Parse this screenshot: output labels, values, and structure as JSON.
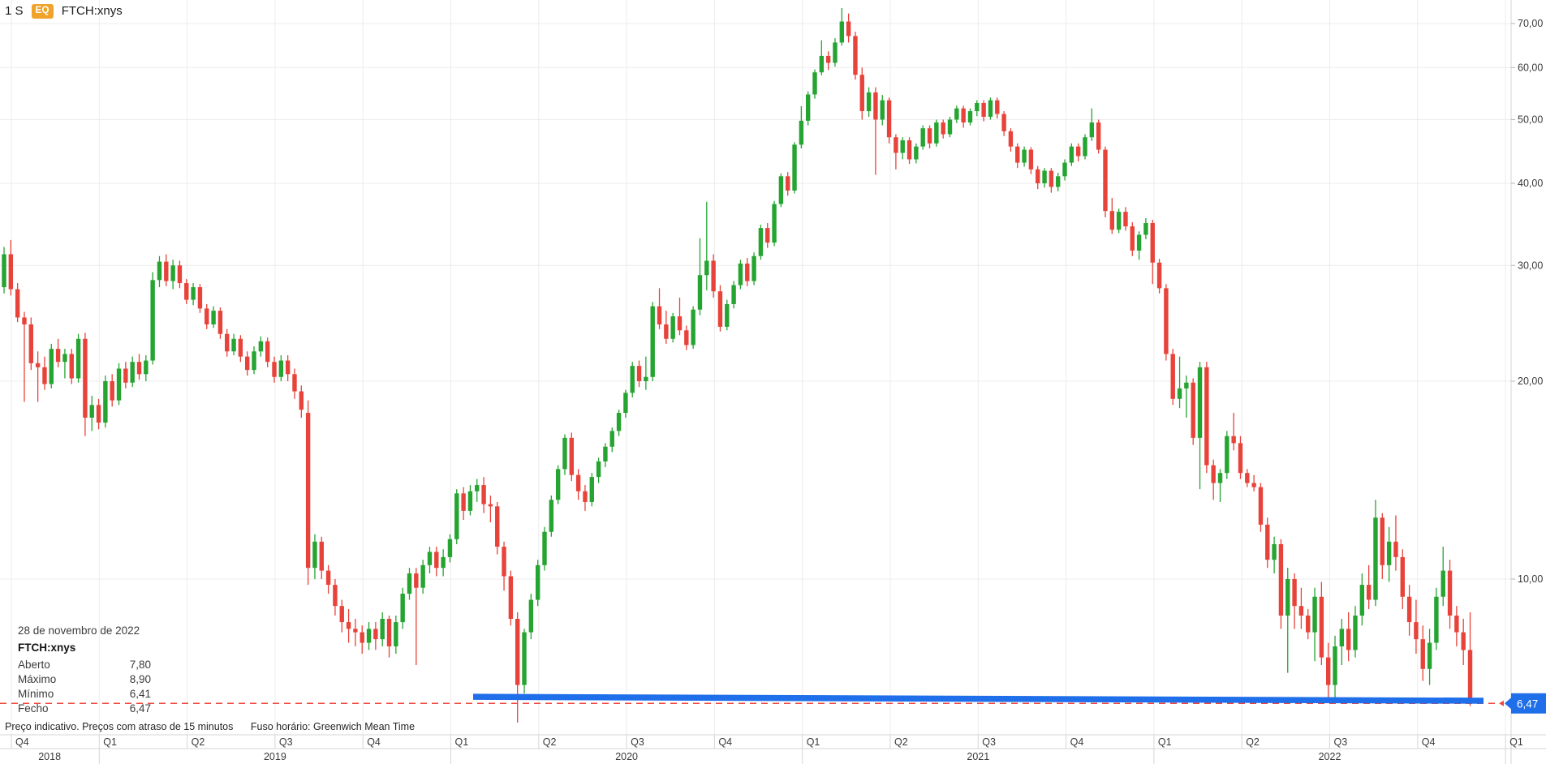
{
  "header": {
    "timeframe": "1 S",
    "instrument_badge": "EQ",
    "symbol": "FTCH:xnys"
  },
  "tooltip": {
    "date": "28 de novembro de 2022",
    "symbol": "FTCH:xnys",
    "rows": [
      {
        "label": "Aberto",
        "value": "7,80"
      },
      {
        "label": "Máximo",
        "value": "8,90"
      },
      {
        "label": "Mínimo",
        "value": "6,41"
      },
      {
        "label": "Fecho",
        "value": "6,47"
      }
    ]
  },
  "status": {
    "delay_notice": "Preço indicativo. Preços com atraso de 15 minutos",
    "timezone": "Fuso horário: Greenwich Mean Time"
  },
  "chart_data": {
    "type": "candlestick",
    "symbol": "FTCH:xnys",
    "interval": "weekly",
    "y_scale": "log",
    "grid": true,
    "y_axis": {
      "side": "right",
      "ticks": [
        70,
        60,
        50,
        40,
        30,
        20,
        10
      ],
      "tick_labels": [
        "70,00",
        "60,00",
        "50,00",
        "40,00",
        "30,00",
        "20,00",
        "10,00"
      ],
      "range_approx": [
        5.9,
        76
      ]
    },
    "x_axis": {
      "quarter_labels": [
        "Q4",
        "Q1",
        "Q2",
        "Q3",
        "Q4",
        "Q1",
        "Q2",
        "Q3",
        "Q4",
        "Q1",
        "Q2",
        "Q3",
        "Q4",
        "Q1",
        "Q2",
        "Q3",
        "Q4",
        "Q1"
      ],
      "year_labels": [
        "2018",
        "2019",
        "2020",
        "2021",
        "2022"
      ]
    },
    "last_price": {
      "value": 6.47,
      "label": "6,47"
    },
    "overlays": {
      "trendline": {
        "type": "horizontal-line",
        "price_start": 6.62,
        "price_end": 6.53,
        "color": "#1f6fea"
      },
      "last_price_line": {
        "price": 6.47,
        "style": "dashed",
        "color": "#f0453c"
      }
    },
    "colors": {
      "up": "#25a431",
      "down": "#e8433a",
      "grid": "#ececec",
      "axis_border": "#d6d6d6",
      "axis_text": "#3a3a3a",
      "price_badge_bg": "#1f6fea",
      "price_badge_text": "#ffffff",
      "eq_badge_bg": "#f0a32a"
    },
    "candles": [
      [
        27.8,
        32.0,
        27.2,
        31.2
      ],
      [
        31.2,
        32.8,
        27.0,
        27.6
      ],
      [
        27.6,
        28.2,
        24.6,
        25.0
      ],
      [
        25.0,
        25.5,
        18.6,
        24.4
      ],
      [
        24.4,
        25.0,
        20.8,
        21.3
      ],
      [
        21.3,
        22.2,
        18.6,
        21.0
      ],
      [
        21.0,
        21.8,
        19.4,
        19.8
      ],
      [
        19.8,
        22.8,
        19.5,
        22.4
      ],
      [
        22.4,
        23.2,
        21.0,
        21.4
      ],
      [
        21.4,
        22.4,
        20.2,
        22.0
      ],
      [
        22.0,
        22.4,
        19.8,
        20.2
      ],
      [
        20.2,
        23.6,
        19.9,
        23.2
      ],
      [
        23.2,
        23.7,
        16.5,
        17.6
      ],
      [
        17.6,
        19.0,
        16.8,
        18.4
      ],
      [
        18.4,
        18.8,
        16.9,
        17.3
      ],
      [
        17.3,
        20.4,
        17.0,
        20.0
      ],
      [
        20.0,
        20.5,
        18.3,
        18.7
      ],
      [
        18.7,
        21.3,
        18.4,
        20.9
      ],
      [
        20.9,
        21.4,
        19.5,
        19.9
      ],
      [
        19.9,
        21.8,
        19.6,
        21.4
      ],
      [
        21.4,
        22.0,
        20.1,
        20.5
      ],
      [
        20.5,
        21.9,
        20.0,
        21.5
      ],
      [
        21.5,
        29.3,
        21.2,
        28.5
      ],
      [
        28.5,
        31.0,
        27.8,
        30.4
      ],
      [
        30.4,
        31.2,
        27.9,
        28.4
      ],
      [
        28.4,
        30.6,
        27.6,
        30.0
      ],
      [
        30.0,
        30.5,
        27.7,
        28.2
      ],
      [
        28.2,
        28.6,
        26.2,
        26.6
      ],
      [
        26.6,
        28.2,
        26.1,
        27.8
      ],
      [
        27.8,
        28.1,
        25.4,
        25.8
      ],
      [
        25.8,
        26.2,
        24.0,
        24.4
      ],
      [
        24.4,
        26.0,
        24.1,
        25.6
      ],
      [
        25.6,
        25.9,
        23.2,
        23.6
      ],
      [
        23.6,
        24.0,
        21.8,
        22.2
      ],
      [
        22.2,
        23.6,
        21.9,
        23.2
      ],
      [
        23.2,
        23.5,
        21.4,
        21.8
      ],
      [
        21.8,
        22.2,
        20.4,
        20.8
      ],
      [
        20.8,
        22.6,
        20.5,
        22.2
      ],
      [
        22.2,
        23.4,
        21.8,
        23.0
      ],
      [
        23.0,
        23.3,
        21.0,
        21.4
      ],
      [
        21.4,
        21.8,
        19.9,
        20.3
      ],
      [
        20.3,
        21.9,
        20.0,
        21.5
      ],
      [
        21.5,
        21.9,
        20.0,
        20.5
      ],
      [
        20.5,
        20.9,
        18.8,
        19.3
      ],
      [
        19.3,
        19.7,
        17.6,
        18.1
      ],
      [
        17.9,
        18.7,
        9.8,
        10.4
      ],
      [
        10.4,
        11.7,
        10.0,
        11.4
      ],
      [
        11.4,
        11.6,
        10.0,
        10.3
      ],
      [
        10.3,
        10.5,
        9.5,
        9.8
      ],
      [
        9.8,
        10.0,
        8.8,
        9.1
      ],
      [
        9.1,
        9.3,
        8.3,
        8.6
      ],
      [
        8.6,
        9.0,
        8.0,
        8.4
      ],
      [
        8.4,
        8.7,
        7.9,
        8.3
      ],
      [
        8.3,
        8.5,
        7.7,
        8.0
      ],
      [
        8.0,
        8.6,
        7.8,
        8.4
      ],
      [
        8.4,
        8.6,
        7.8,
        8.1
      ],
      [
        8.1,
        8.9,
        7.9,
        8.7
      ],
      [
        8.7,
        8.8,
        7.6,
        7.9
      ],
      [
        7.9,
        8.8,
        7.7,
        8.6
      ],
      [
        8.6,
        9.7,
        8.4,
        9.5
      ],
      [
        9.5,
        10.4,
        9.3,
        10.2
      ],
      [
        10.2,
        10.4,
        7.4,
        9.7
      ],
      [
        9.7,
        10.7,
        9.5,
        10.5
      ],
      [
        10.5,
        11.2,
        10.2,
        11.0
      ],
      [
        11.0,
        11.2,
        10.1,
        10.4
      ],
      [
        10.4,
        11.1,
        10.1,
        10.8
      ],
      [
        10.8,
        11.7,
        10.6,
        11.5
      ],
      [
        11.5,
        13.7,
        11.3,
        13.5
      ],
      [
        13.5,
        13.8,
        12.3,
        12.7
      ],
      [
        12.7,
        13.9,
        12.5,
        13.6
      ],
      [
        13.6,
        14.2,
        13.1,
        13.9
      ],
      [
        13.9,
        14.3,
        12.6,
        13.0
      ],
      [
        13.0,
        13.4,
        12.2,
        12.9
      ],
      [
        12.9,
        13.1,
        10.9,
        11.2
      ],
      [
        11.2,
        11.4,
        9.6,
        10.1
      ],
      [
        10.1,
        10.3,
        8.5,
        8.7
      ],
      [
        8.7,
        8.9,
        6.05,
        6.9
      ],
      [
        6.9,
        8.4,
        6.7,
        8.3
      ],
      [
        8.3,
        9.5,
        8.1,
        9.3
      ],
      [
        9.3,
        10.7,
        9.1,
        10.5
      ],
      [
        10.5,
        12.0,
        10.3,
        11.8
      ],
      [
        11.8,
        13.4,
        11.6,
        13.2
      ],
      [
        13.2,
        14.9,
        13.0,
        14.7
      ],
      [
        14.7,
        16.6,
        14.4,
        16.4
      ],
      [
        16.4,
        16.7,
        14.1,
        14.4
      ],
      [
        14.4,
        14.7,
        13.2,
        13.6
      ],
      [
        13.6,
        13.9,
        12.7,
        13.1
      ],
      [
        13.1,
        14.5,
        12.9,
        14.3
      ],
      [
        14.3,
        15.3,
        14.0,
        15.1
      ],
      [
        15.1,
        16.1,
        14.8,
        15.9
      ],
      [
        15.9,
        17.0,
        15.6,
        16.8
      ],
      [
        16.8,
        18.1,
        16.5,
        17.9
      ],
      [
        17.9,
        19.4,
        17.6,
        19.2
      ],
      [
        19.2,
        21.4,
        18.9,
        21.1
      ],
      [
        21.1,
        21.5,
        19.6,
        20.0
      ],
      [
        20.0,
        21.8,
        19.4,
        20.3
      ],
      [
        20.3,
        26.4,
        20.0,
        26.0
      ],
      [
        26.0,
        27.7,
        24.0,
        24.4
      ],
      [
        24.4,
        25.6,
        22.8,
        23.2
      ],
      [
        23.2,
        25.4,
        22.9,
        25.1
      ],
      [
        25.1,
        26.8,
        23.5,
        23.9
      ],
      [
        23.9,
        24.3,
        22.3,
        22.7
      ],
      [
        22.7,
        26.0,
        22.4,
        25.7
      ],
      [
        25.7,
        33.0,
        25.2,
        29.0
      ],
      [
        29.0,
        37.5,
        27.5,
        30.5
      ],
      [
        30.5,
        31.2,
        26.8,
        27.4
      ],
      [
        27.4,
        28.0,
        23.8,
        24.2
      ],
      [
        24.2,
        26.6,
        23.9,
        26.2
      ],
      [
        26.2,
        28.4,
        25.8,
        28.0
      ],
      [
        28.0,
        30.6,
        27.6,
        30.2
      ],
      [
        30.2,
        30.8,
        27.9,
        28.4
      ],
      [
        28.4,
        31.4,
        28.0,
        31.0
      ],
      [
        31.0,
        34.6,
        30.6,
        34.2
      ],
      [
        34.2,
        34.8,
        31.9,
        32.5
      ],
      [
        32.5,
        37.6,
        32.1,
        37.2
      ],
      [
        37.2,
        41.4,
        36.8,
        41.0
      ],
      [
        41.0,
        41.6,
        38.3,
        39.0
      ],
      [
        39.0,
        46.2,
        38.6,
        45.8
      ],
      [
        45.8,
        52.4,
        45.2,
        49.8
      ],
      [
        49.8,
        55.2,
        49.0,
        54.6
      ],
      [
        54.6,
        59.6,
        53.8,
        59.0
      ],
      [
        59.0,
        66.0,
        58.4,
        62.5
      ],
      [
        62.5,
        63.5,
        59.5,
        61.0
      ],
      [
        61.0,
        66.5,
        60.2,
        65.5
      ],
      [
        65.5,
        73.9,
        64.8,
        70.5
      ],
      [
        70.5,
        72.5,
        65.5,
        67.0
      ],
      [
        67.0,
        68.0,
        57.5,
        58.5
      ],
      [
        58.5,
        60.0,
        50.0,
        51.5
      ],
      [
        51.5,
        56.0,
        50.5,
        55.0
      ],
      [
        55.0,
        56.0,
        41.2,
        50.0
      ],
      [
        50.0,
        54.5,
        49.0,
        53.5
      ],
      [
        53.5,
        54.0,
        46.0,
        47.0
      ],
      [
        47.0,
        47.5,
        42.0,
        44.5
      ],
      [
        44.5,
        47.0,
        43.5,
        46.5
      ],
      [
        46.5,
        47.0,
        42.8,
        43.5
      ],
      [
        43.5,
        46.0,
        42.9,
        45.5
      ],
      [
        45.5,
        49.0,
        45.0,
        48.5
      ],
      [
        48.5,
        49.0,
        45.2,
        46.0
      ],
      [
        46.0,
        50.0,
        45.5,
        49.5
      ],
      [
        49.5,
        50.0,
        46.8,
        47.5
      ],
      [
        47.5,
        50.5,
        47.0,
        50.0
      ],
      [
        50.0,
        52.5,
        49.4,
        52.0
      ],
      [
        52.0,
        52.5,
        48.6,
        49.5
      ],
      [
        49.5,
        52.0,
        49.0,
        51.5
      ],
      [
        51.5,
        53.5,
        50.6,
        53.0
      ],
      [
        53.0,
        53.5,
        49.7,
        50.5
      ],
      [
        50.5,
        54.0,
        50.0,
        53.5
      ],
      [
        53.5,
        54.0,
        50.2,
        51.0
      ],
      [
        51.0,
        51.5,
        47.2,
        48.0
      ],
      [
        48.0,
        48.5,
        44.7,
        45.5
      ],
      [
        45.5,
        46.0,
        42.2,
        43.0
      ],
      [
        43.0,
        45.5,
        42.4,
        45.0
      ],
      [
        45.0,
        45.4,
        41.3,
        42.0
      ],
      [
        42.0,
        42.5,
        39.2,
        40.0
      ],
      [
        40.0,
        42.2,
        39.4,
        41.8
      ],
      [
        41.8,
        42.2,
        38.7,
        39.5
      ],
      [
        39.5,
        41.5,
        38.9,
        41.0
      ],
      [
        41.0,
        43.5,
        40.4,
        43.0
      ],
      [
        43.0,
        46.0,
        42.5,
        45.5
      ],
      [
        45.5,
        46.0,
        43.2,
        44.0
      ],
      [
        44.0,
        47.5,
        43.5,
        47.0
      ],
      [
        47.0,
        52.0,
        46.4,
        49.5
      ],
      [
        49.5,
        50.0,
        44.4,
        45.0
      ],
      [
        45.0,
        45.5,
        35.5,
        36.3
      ],
      [
        36.3,
        38.0,
        33.5,
        34.0
      ],
      [
        34.0,
        36.6,
        33.6,
        36.2
      ],
      [
        36.2,
        36.8,
        33.9,
        34.4
      ],
      [
        34.4,
        34.9,
        31.0,
        31.6
      ],
      [
        31.6,
        33.8,
        30.6,
        33.4
      ],
      [
        33.4,
        35.4,
        32.9,
        34.8
      ],
      [
        34.8,
        35.2,
        28.1,
        30.3
      ],
      [
        30.3,
        30.7,
        27.2,
        27.7
      ],
      [
        27.7,
        28.1,
        21.5,
        22.0
      ],
      [
        22.0,
        22.4,
        18.4,
        18.8
      ],
      [
        18.8,
        21.8,
        18.2,
        19.5
      ],
      [
        19.5,
        20.4,
        17.6,
        19.9
      ],
      [
        19.9,
        20.2,
        16.0,
        16.4
      ],
      [
        16.4,
        21.4,
        13.7,
        21.0
      ],
      [
        21.0,
        21.4,
        14.5,
        14.9
      ],
      [
        14.9,
        15.2,
        13.2,
        14.0
      ],
      [
        14.0,
        14.7,
        13.1,
        14.5
      ],
      [
        14.5,
        16.8,
        14.2,
        16.5
      ],
      [
        16.5,
        17.9,
        15.7,
        16.1
      ],
      [
        16.1,
        16.5,
        14.2,
        14.5
      ],
      [
        14.5,
        14.7,
        13.8,
        14.0
      ],
      [
        14.0,
        14.4,
        13.6,
        13.8
      ],
      [
        13.8,
        14.0,
        11.8,
        12.1
      ],
      [
        12.1,
        12.4,
        10.4,
        10.7
      ],
      [
        10.7,
        11.6,
        10.2,
        11.3
      ],
      [
        11.3,
        11.5,
        8.4,
        8.8
      ],
      [
        8.8,
        10.4,
        7.2,
        10.0
      ],
      [
        10.0,
        10.2,
        8.4,
        9.1
      ],
      [
        9.1,
        9.7,
        8.4,
        8.8
      ],
      [
        8.8,
        9.0,
        8.1,
        8.3
      ],
      [
        8.3,
        9.7,
        7.5,
        9.4
      ],
      [
        9.4,
        9.9,
        7.4,
        7.6
      ],
      [
        7.6,
        8.0,
        6.5,
        6.9
      ],
      [
        6.9,
        8.2,
        6.6,
        7.9
      ],
      [
        7.9,
        8.7,
        7.4,
        8.4
      ],
      [
        8.4,
        8.9,
        7.5,
        7.8
      ],
      [
        7.8,
        9.1,
        7.6,
        8.8
      ],
      [
        8.8,
        10.2,
        8.5,
        9.8
      ],
      [
        9.8,
        10.5,
        9.0,
        9.3
      ],
      [
        9.3,
        13.2,
        9.1,
        12.4
      ],
      [
        12.4,
        12.6,
        10.0,
        10.5
      ],
      [
        10.5,
        12.0,
        9.9,
        11.4
      ],
      [
        11.4,
        12.5,
        10.3,
        10.8
      ],
      [
        10.8,
        11.1,
        9.0,
        9.4
      ],
      [
        9.4,
        9.8,
        8.2,
        8.6
      ],
      [
        8.6,
        9.3,
        7.7,
        8.1
      ],
      [
        8.1,
        8.5,
        7.0,
        7.3
      ],
      [
        7.3,
        8.4,
        6.9,
        8.0
      ],
      [
        8.0,
        9.7,
        7.8,
        9.4
      ],
      [
        9.4,
        11.2,
        9.1,
        10.3
      ],
      [
        10.3,
        10.7,
        8.4,
        8.8
      ],
      [
        8.8,
        9.1,
        7.9,
        8.3
      ],
      [
        8.3,
        8.7,
        7.4,
        7.8
      ],
      [
        7.8,
        8.9,
        6.41,
        6.47
      ]
    ]
  }
}
